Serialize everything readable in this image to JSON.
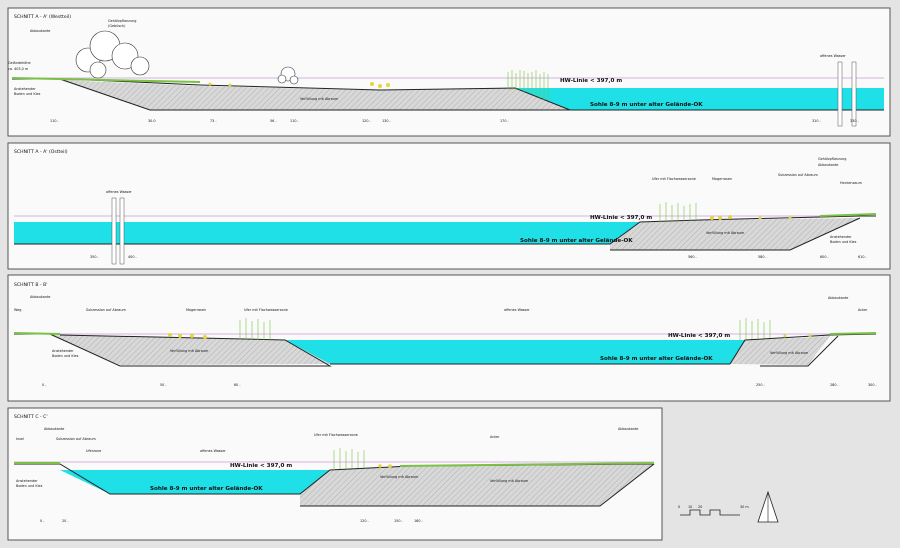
{
  "sections": [
    {
      "title": "SCHNITT A - A' (Westteil)",
      "labels": {
        "abbaukante": "Abbaukante",
        "gehoelz": "Gehölzpflanzung",
        "gehoelz2": "(Gebüsch)",
        "gelaende": "Geländehöhe",
        "gelaende_val": "ca. 403,0 m",
        "boden1": "Anstehender",
        "boden2": "Boden und Kies",
        "hw": "HW-Linie < 397,0 m",
        "sohle": "Sohle 8-9 m unter alter Gelände-OK",
        "fuellung": "Verfüllung mit Abraum",
        "wasser": "offenes Wasser"
      },
      "dims": [
        "110 -",
        "30.0",
        "73 -",
        "56 -",
        "110 -",
        "120 -",
        "130 -",
        "170 -",
        "310 -",
        "330 -"
      ]
    },
    {
      "title": "SCHNITT A - A' (Ostteil)",
      "labels": {
        "wasser": "offenes Wasser",
        "ufer": "Ufer mit Flachwasserzone",
        "magerrasen": "Magerrasen",
        "sukzession": "Sukzession auf Abraum",
        "gehoelz": "Gehölzpflanzung",
        "abbaukante": "Abbaukante",
        "heckensaum": "Heckensaum",
        "hw": "HW-Linie < 397,0 m",
        "sohle": "Sohle 8-9 m unter alter Gelände-OK",
        "fuellung": "Verfüllung mit Abraum",
        "boden1": "Anstehender",
        "boden2": "Boden und Kies"
      },
      "dims": [
        "350 -",
        "400 -",
        "560 -",
        "580 -",
        "600 -",
        "610 -"
      ]
    },
    {
      "title": "SCHNITT B - B'",
      "labels": {
        "abbaukante": "Abbaukante",
        "weg": "Weg",
        "sukzession": "Sukzession auf Abraum",
        "magerrasen": "Magerrasen",
        "ufer": "Ufer mit Flachwasserzone",
        "wasser": "offenes Wasser",
        "fuellung": "Verfüllung mit Abraum",
        "boden1": "Anstehender",
        "boden2": "Boden und Kies",
        "hw": "HW-Linie < 397,0 m",
        "sohle": "Sohle 8-9 m unter alter Gelände-OK",
        "acker": "Acker",
        "abbaukante_r": "Abbaukante",
        "fuellung_r": "Verfüllung mit Abraum"
      },
      "dims": [
        "0 -",
        "50 -",
        "60 -",
        "250 -",
        "280 -",
        "300 -"
      ]
    },
    {
      "title": "SCHNITT C - C'",
      "labels": {
        "insel": "Insel",
        "abbaukante": "Abbaukante",
        "sukzession": "Sukzession auf Abraum",
        "uferzone": "Uferzone",
        "wasser": "offenes Wasser",
        "ufer": "Ufer mit Flachwasserzone",
        "acker": "Acker",
        "abbaukante_r": "Abbaukante",
        "boden1": "Anstehender",
        "boden2": "Boden und Kies",
        "hw": "HW-Linie < 397,0 m",
        "sohle": "Sohle 8-9 m unter alter Gelände-OK",
        "fuellung": "Verfüllung mit Abraum",
        "fuellung2": "Verfüllung mit Abraum"
      },
      "dims": [
        "0 -",
        "20 -",
        "120 -",
        "150 -",
        "160 -"
      ]
    }
  ],
  "scale_bar": {
    "ticks": [
      "0",
      "10",
      "20",
      "30 m"
    ]
  },
  "colors": {
    "water": "#1fe0e6",
    "fill": "#cfcfcf",
    "grass": "#7bc243",
    "reed": "#b9d95f",
    "frame": "#555555",
    "hwline": "#c49ad8"
  }
}
